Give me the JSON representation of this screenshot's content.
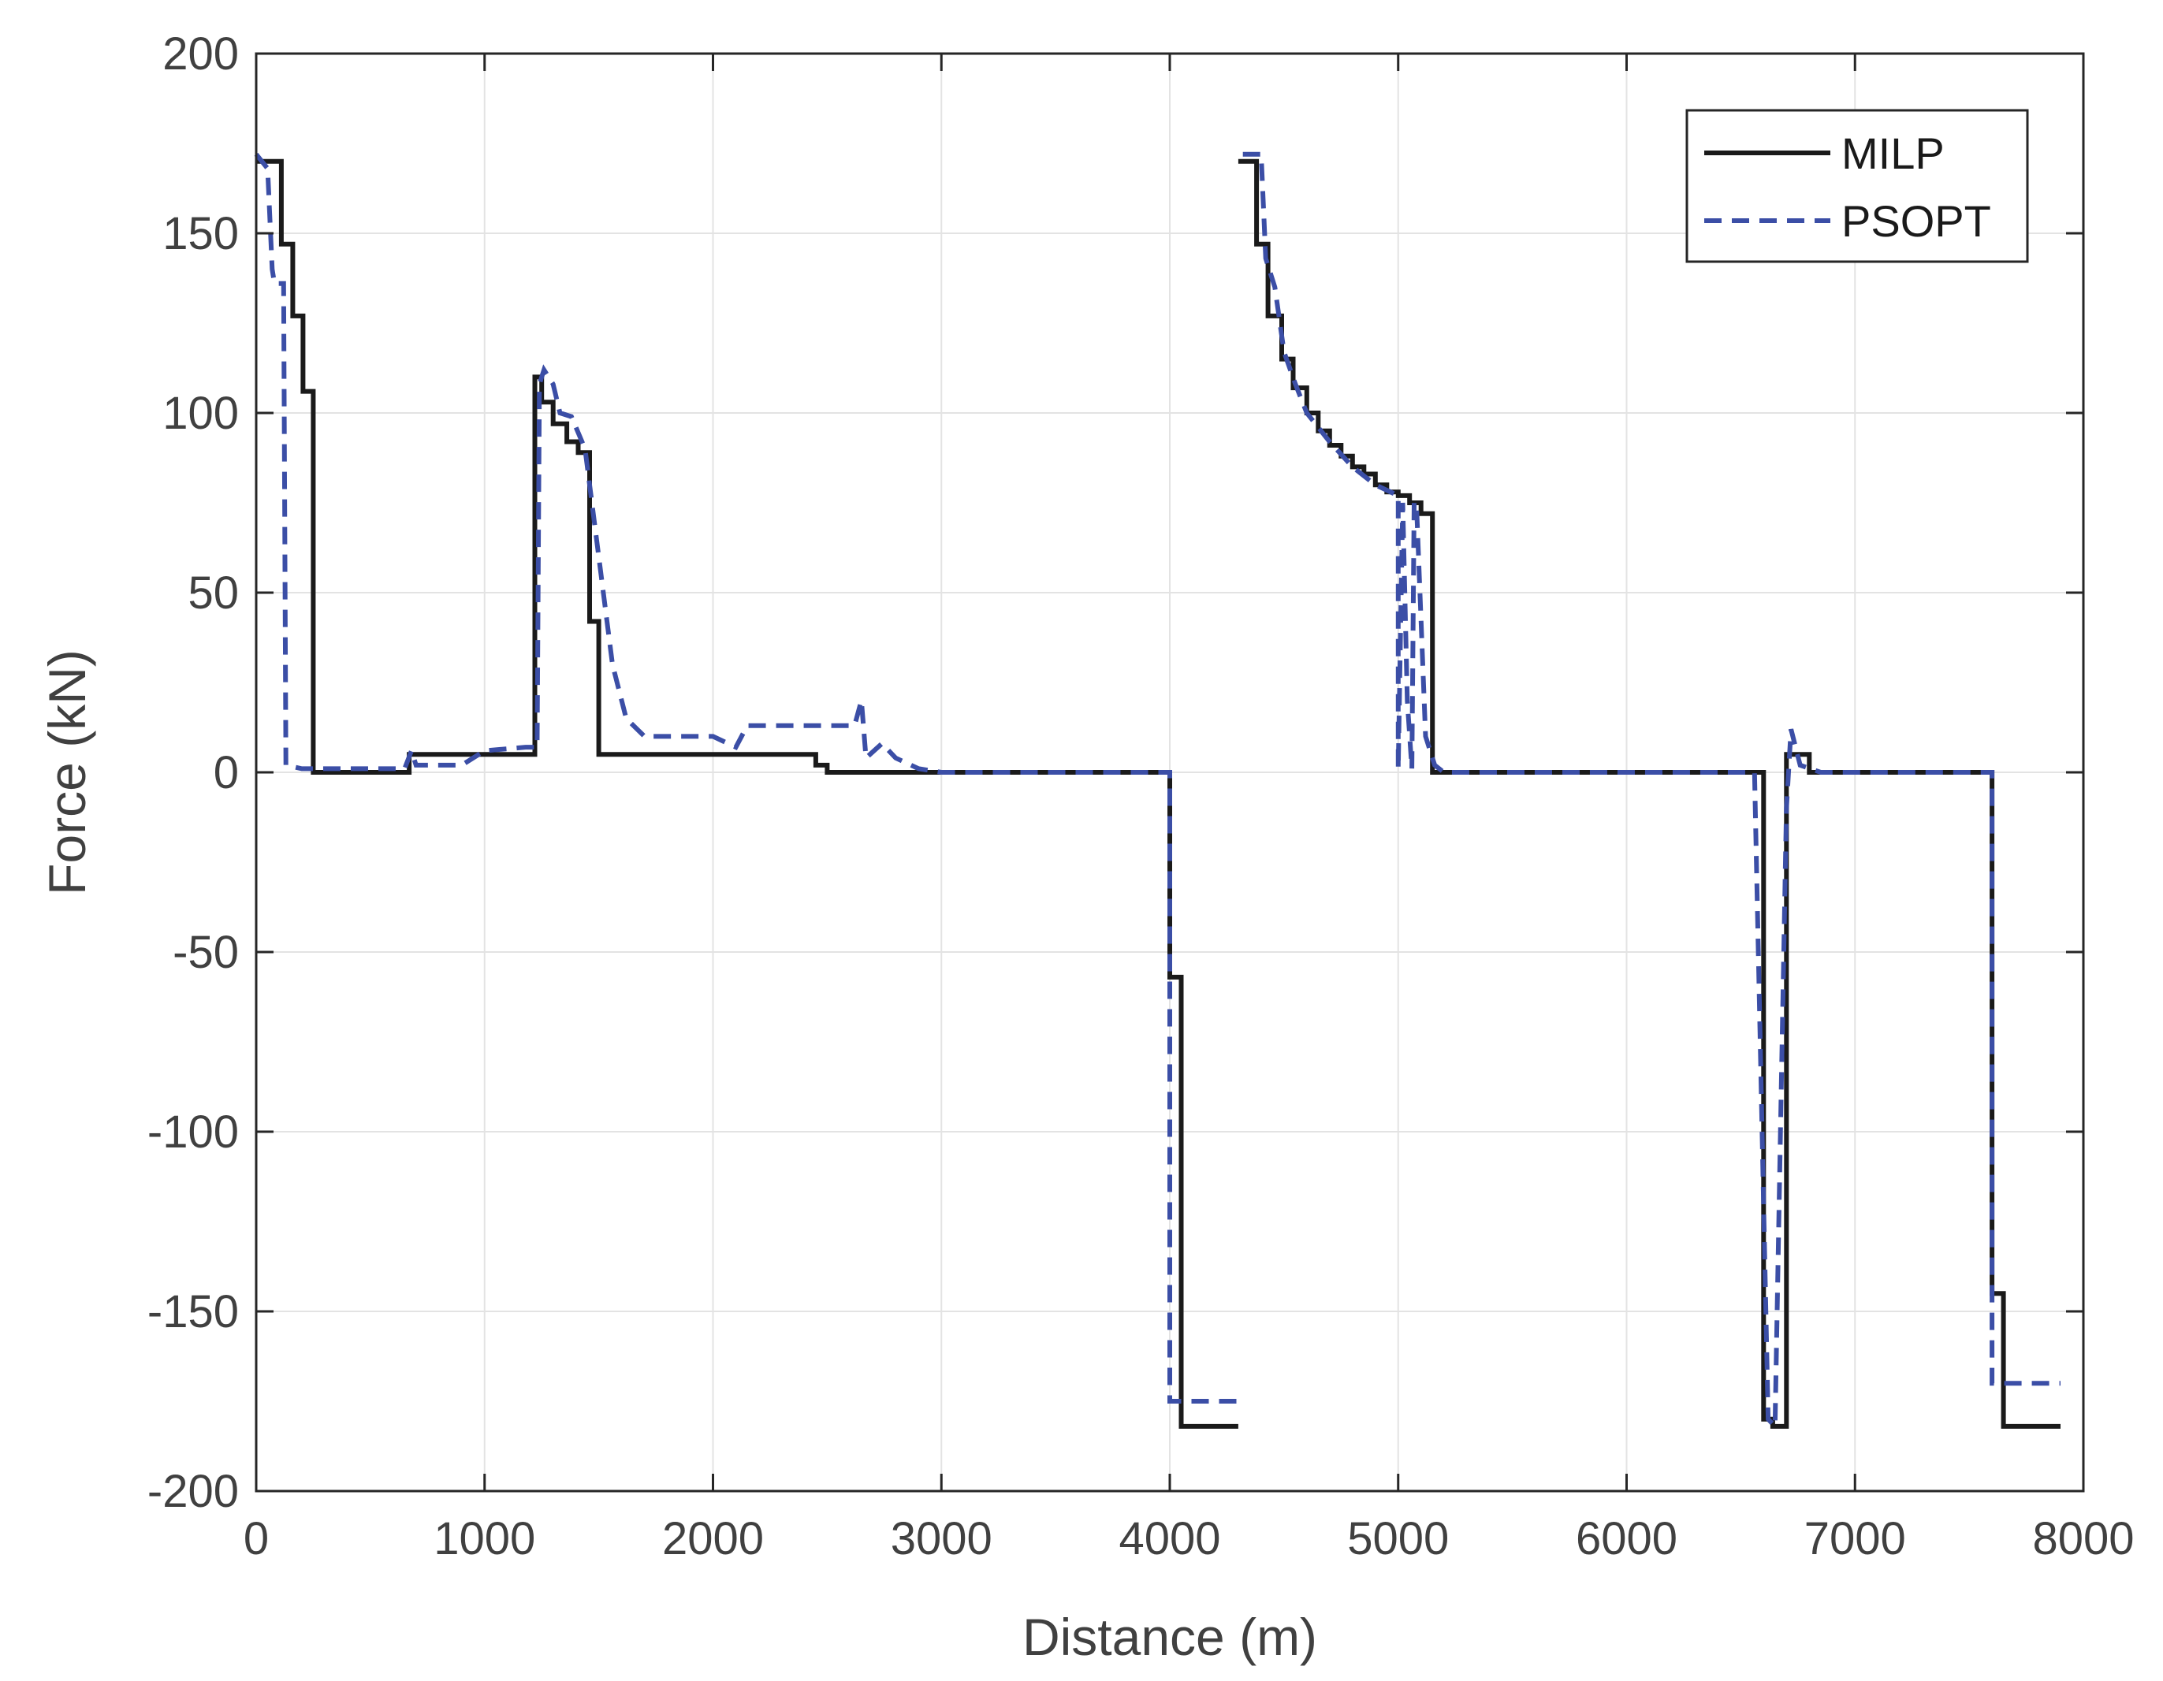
{
  "chart_data": {
    "type": "line",
    "xlabel": "Distance (m)",
    "ylabel": "Force (kN)",
    "xlim": [
      0,
      8000
    ],
    "ylim": [
      -200,
      200
    ],
    "xticks": [
      0,
      1000,
      2000,
      3000,
      4000,
      5000,
      6000,
      7000,
      8000
    ],
    "yticks": [
      -200,
      -150,
      -100,
      -50,
      0,
      50,
      100,
      150,
      200
    ],
    "grid": true,
    "legend_position": "top-right",
    "series": [
      {
        "name": "MILP",
        "color": "#1a1a1a",
        "style": "solid",
        "points": [
          [
            0,
            170
          ],
          [
            110,
            170
          ],
          [
            110,
            147
          ],
          [
            160,
            147
          ],
          [
            160,
            127
          ],
          [
            205,
            127
          ],
          [
            205,
            106
          ],
          [
            250,
            106
          ],
          [
            250,
            0
          ],
          [
            670,
            0
          ],
          [
            670,
            5
          ],
          [
            1220,
            5
          ],
          [
            1220,
            110
          ],
          [
            1250,
            110
          ],
          [
            1250,
            103
          ],
          [
            1300,
            103
          ],
          [
            1300,
            97
          ],
          [
            1360,
            97
          ],
          [
            1360,
            92
          ],
          [
            1410,
            92
          ],
          [
            1410,
            89
          ],
          [
            1460,
            89
          ],
          [
            1460,
            42
          ],
          [
            1500,
            42
          ],
          [
            1500,
            5
          ],
          [
            2450,
            5
          ],
          [
            2450,
            2
          ],
          [
            2500,
            2
          ],
          [
            2500,
            0
          ],
          [
            4000,
            0
          ],
          [
            4000,
            -57
          ],
          [
            4050,
            -57
          ],
          [
            4050,
            -182
          ],
          [
            4300,
            -182
          ],
          [
            4300,
            null
          ],
          [
            4300,
            170
          ],
          [
            4380,
            170
          ],
          [
            4380,
            147
          ],
          [
            4430,
            147
          ],
          [
            4430,
            127
          ],
          [
            4490,
            127
          ],
          [
            4490,
            115
          ],
          [
            4540,
            115
          ],
          [
            4540,
            107
          ],
          [
            4600,
            107
          ],
          [
            4600,
            100
          ],
          [
            4650,
            100
          ],
          [
            4650,
            95
          ],
          [
            4700,
            95
          ],
          [
            4700,
            91
          ],
          [
            4750,
            91
          ],
          [
            4750,
            88
          ],
          [
            4800,
            88
          ],
          [
            4800,
            85
          ],
          [
            4850,
            85
          ],
          [
            4850,
            83
          ],
          [
            4900,
            83
          ],
          [
            4900,
            80
          ],
          [
            4950,
            80
          ],
          [
            4950,
            78
          ],
          [
            5000,
            78
          ],
          [
            5000,
            77
          ],
          [
            5050,
            77
          ],
          [
            5050,
            75
          ],
          [
            5100,
            75
          ],
          [
            5100,
            72
          ],
          [
            5150,
            72
          ],
          [
            5150,
            0
          ],
          [
            6600,
            0
          ],
          [
            6600,
            -180
          ],
          [
            6640,
            -180
          ],
          [
            6640,
            -182
          ],
          [
            6700,
            -182
          ],
          [
            6700,
            5
          ],
          [
            6800,
            5
          ],
          [
            6800,
            0
          ],
          [
            7600,
            0
          ],
          [
            7600,
            -145
          ],
          [
            7650,
            -145
          ],
          [
            7650,
            -182
          ],
          [
            7900,
            -182
          ]
        ]
      },
      {
        "name": "PSOPT",
        "color": "#3b4ea6",
        "style": "dashed",
        "points": [
          [
            0,
            172
          ],
          [
            50,
            168
          ],
          [
            70,
            140
          ],
          [
            80,
            136
          ],
          [
            120,
            136
          ],
          [
            130,
            2
          ],
          [
            200,
            1
          ],
          [
            300,
            1
          ],
          [
            650,
            1
          ],
          [
            680,
            6
          ],
          [
            700,
            2
          ],
          [
            900,
            2
          ],
          [
            1000,
            6
          ],
          [
            1180,
            7
          ],
          [
            1230,
            7
          ],
          [
            1240,
            108
          ],
          [
            1260,
            112
          ],
          [
            1300,
            108
          ],
          [
            1330,
            100
          ],
          [
            1380,
            99
          ],
          [
            1440,
            90
          ],
          [
            1500,
            60
          ],
          [
            1560,
            30
          ],
          [
            1620,
            15
          ],
          [
            1700,
            10
          ],
          [
            2000,
            10
          ],
          [
            2100,
            7
          ],
          [
            2150,
            13
          ],
          [
            2620,
            13
          ],
          [
            2650,
            20
          ],
          [
            2670,
            4
          ],
          [
            2740,
            8
          ],
          [
            2800,
            4
          ],
          [
            2900,
            1
          ],
          [
            3000,
            0
          ],
          [
            4000,
            0
          ],
          [
            4000,
            -175
          ],
          [
            4300,
            -175
          ],
          [
            4300,
            null
          ],
          [
            4320,
            172
          ],
          [
            4400,
            172
          ],
          [
            4420,
            143
          ],
          [
            4460,
            135
          ],
          [
            4500,
            117
          ],
          [
            4550,
            108
          ],
          [
            4600,
            100
          ],
          [
            4700,
            92
          ],
          [
            4800,
            85
          ],
          [
            4900,
            80
          ],
          [
            5000,
            77
          ],
          [
            5000,
            1
          ],
          [
            5020,
            75
          ],
          [
            5040,
            20
          ],
          [
            5060,
            1
          ],
          [
            5070,
            75
          ],
          [
            5080,
            75
          ],
          [
            5120,
            10
          ],
          [
            5160,
            2
          ],
          [
            5200,
            0
          ],
          [
            6560,
            0
          ],
          [
            6580,
            -60
          ],
          [
            6600,
            -120
          ],
          [
            6620,
            -180
          ],
          [
            6650,
            -182
          ],
          [
            6700,
            -10
          ],
          [
            6720,
            12
          ],
          [
            6760,
            2
          ],
          [
            6850,
            0
          ],
          [
            7600,
            0
          ],
          [
            7600,
            -170
          ],
          [
            7900,
            -170
          ]
        ]
      }
    ]
  }
}
